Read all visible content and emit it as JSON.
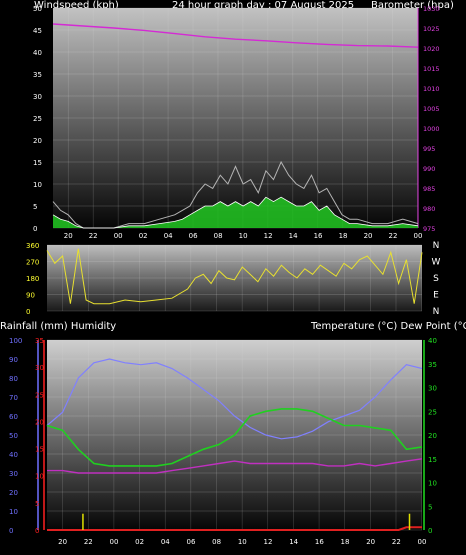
{
  "header": {
    "left": "Windspeed (kph)",
    "center": "24 hour graph day : 07 August 2025",
    "right": "Barometer (hpa)"
  },
  "mid_header": {
    "left": "Rainfall (mm)  Humidity",
    "right": "Temperature (°C) Dew Point (°C)"
  },
  "colors": {
    "wind_speed": "#b4b4b4",
    "wind_avg": "#ffffff",
    "wind_gust_fill": "#22c822",
    "barometer": "#d42ad4",
    "wind_dir": "#e8e030",
    "humidity": "#8080ff",
    "temperature": "#20d020",
    "dew_point": "#c030c0",
    "rainfall": "#e02020",
    "rain_rate": "#e0e000",
    "axis_wind": "#ffffff",
    "axis_baro": "#e040e0",
    "axis_humidity": "#7070ff",
    "axis_rain": "#ff2020",
    "axis_temp": "#20e020"
  },
  "chart_data": [
    {
      "type": "line",
      "panel": "wind_barometer",
      "x_tick_labels": [
        "20",
        "22",
        "00",
        "02",
        "04",
        "06",
        "08",
        "10",
        "12",
        "14",
        "16",
        "18",
        "20",
        "22",
        "00"
      ],
      "y_left": {
        "label": "Windspeed (kph)",
        "range": [
          0,
          50
        ],
        "ticks": [
          0,
          5,
          10,
          15,
          20,
          25,
          30,
          35,
          40,
          45,
          50
        ]
      },
      "y_right": {
        "label": "Barometer (hpa)",
        "range": [
          975,
          1030
        ],
        "ticks": [
          975,
          980,
          985,
          990,
          995,
          1000,
          1005,
          1010,
          1015,
          1020,
          1025,
          1030
        ]
      },
      "series": [
        {
          "name": "Barometer",
          "axis": "right",
          "x": [
            0,
            2,
            4,
            6,
            8,
            10,
            12,
            14,
            16,
            18,
            20,
            22,
            24
          ],
          "values": [
            1026,
            1025.5,
            1025,
            1024.4,
            1023.6,
            1022.8,
            1022.2,
            1021.8,
            1021.3,
            1020.9,
            1020.6,
            1020.5,
            1020.2
          ]
        },
        {
          "name": "Wind gust",
          "axis": "left",
          "x": [
            0,
            0.5,
            1,
            1.5,
            2,
            3,
            4,
            5,
            6,
            7,
            8,
            8.5,
            9,
            9.5,
            10,
            10.5,
            11,
            11.5,
            12,
            12.5,
            13,
            13.5,
            14,
            14.5,
            15,
            15.5,
            16,
            16.5,
            17,
            17.5,
            18,
            18.5,
            19,
            19.5,
            20,
            21,
            22,
            23,
            24
          ],
          "values": [
            6,
            4,
            3,
            1,
            0,
            0,
            0,
            1,
            1,
            2,
            3,
            4,
            5,
            8,
            10,
            9,
            12,
            10,
            14,
            10,
            11,
            8,
            13,
            11,
            15,
            12,
            10,
            9,
            12,
            8,
            9,
            6,
            3,
            2,
            2,
            1,
            1,
            2,
            1
          ]
        },
        {
          "name": "Wind average",
          "axis": "left",
          "x": [
            0,
            0.5,
            1,
            1.5,
            2,
            3,
            4,
            5,
            6,
            7,
            8,
            8.5,
            9,
            9.5,
            10,
            10.5,
            11,
            11.5,
            12,
            12.5,
            13,
            13.5,
            14,
            14.5,
            15,
            15.5,
            16,
            16.5,
            17,
            17.5,
            18,
            18.5,
            19,
            19.5,
            20,
            21,
            22,
            23,
            24
          ],
          "values": [
            3,
            2,
            1.5,
            0.5,
            0,
            0,
            0,
            0.5,
            0.5,
            1,
            1.5,
            2,
            3,
            4,
            5,
            5,
            6,
            5,
            6,
            5,
            6,
            5,
            7,
            6,
            7,
            6,
            5,
            5,
            6,
            4,
            5,
            3,
            2,
            1,
            1,
            0.5,
            0.5,
            1,
            0.5
          ]
        }
      ]
    },
    {
      "type": "line",
      "panel": "wind_direction",
      "x_tick_labels": [
        "20",
        "22",
        "00",
        "02",
        "04",
        "06",
        "08",
        "10",
        "12",
        "14",
        "16",
        "18",
        "20",
        "22",
        "00"
      ],
      "y_left": {
        "range": [
          0,
          360
        ],
        "ticks": [
          0,
          90,
          180,
          270,
          360
        ]
      },
      "y_right": {
        "ticks": [
          "N",
          "W",
          "S",
          "E",
          "N"
        ]
      },
      "series": [
        {
          "name": "Wind direction",
          "x": [
            0,
            0.5,
            1,
            1.5,
            2,
            2.5,
            3,
            4,
            5,
            6,
            7,
            8,
            9,
            9.5,
            10,
            10.5,
            11,
            11.5,
            12,
            12.5,
            13,
            13.5,
            14,
            14.5,
            15,
            15.5,
            16,
            16.5,
            17,
            17.5,
            18,
            18.5,
            19,
            19.5,
            20,
            20.5,
            21,
            21.5,
            22,
            22.5,
            23,
            23.5,
            24
          ],
          "values": [
            330,
            260,
            300,
            40,
            340,
            60,
            40,
            40,
            60,
            50,
            60,
            70,
            120,
            180,
            200,
            150,
            220,
            180,
            170,
            240,
            200,
            160,
            230,
            190,
            250,
            210,
            180,
            230,
            200,
            250,
            220,
            190,
            260,
            230,
            280,
            300,
            250,
            200,
            320,
            150,
            280,
            40,
            320
          ]
        }
      ]
    },
    {
      "type": "line",
      "panel": "temperature_humidity_rain",
      "x_tick_labels": [
        "20",
        "22",
        "00",
        "02",
        "04",
        "06",
        "08",
        "10",
        "12",
        "14",
        "16",
        "18",
        "20",
        "22",
        "00"
      ],
      "y_humidity": {
        "range": [
          0,
          100
        ],
        "ticks": [
          0,
          10,
          20,
          30,
          40,
          50,
          60,
          70,
          80,
          90,
          100
        ]
      },
      "y_rain": {
        "range": [
          0,
          35
        ],
        "ticks": [
          0,
          5,
          10,
          15,
          20,
          25,
          30,
          35
        ]
      },
      "y_temp": {
        "range": [
          0,
          40
        ],
        "ticks": [
          0,
          5,
          10,
          15,
          20,
          25,
          30,
          35,
          40
        ]
      },
      "series": [
        {
          "name": "Humidity",
          "axis": "humidity",
          "x": [
            0,
            1,
            2,
            3,
            4,
            5,
            6,
            7,
            8,
            9,
            10,
            11,
            12,
            13,
            14,
            15,
            16,
            17,
            18,
            19,
            20,
            21,
            22,
            23,
            24
          ],
          "values": [
            55,
            62,
            80,
            88,
            90,
            88,
            87,
            88,
            85,
            80,
            74,
            68,
            60,
            54,
            50,
            48,
            49,
            52,
            57,
            60,
            63,
            70,
            79,
            87,
            85
          ]
        },
        {
          "name": "Temperature",
          "axis": "temp",
          "x": [
            0,
            1,
            2,
            3,
            4,
            5,
            6,
            7,
            8,
            9,
            10,
            11,
            12,
            13,
            14,
            15,
            16,
            17,
            18,
            19,
            20,
            21,
            22,
            23,
            24
          ],
          "values": [
            22,
            21,
            17,
            14,
            13.5,
            13.5,
            13.5,
            13.5,
            14,
            15.5,
            17,
            18,
            20,
            24,
            25,
            25.5,
            25.5,
            25,
            23.5,
            22,
            22,
            21.5,
            21,
            17,
            17.5
          ]
        },
        {
          "name": "Dew point",
          "axis": "temp",
          "x": [
            0,
            1,
            2,
            3,
            4,
            5,
            6,
            7,
            8,
            9,
            10,
            11,
            12,
            13,
            14,
            15,
            16,
            17,
            18,
            19,
            20,
            21,
            22,
            23,
            24
          ],
          "values": [
            12.5,
            12.5,
            12,
            12,
            12,
            12,
            12,
            12,
            12.5,
            13,
            13.5,
            14,
            14.5,
            14,
            14,
            14,
            14,
            14,
            13.5,
            13.5,
            14,
            13.5,
            14,
            14.5,
            15
          ]
        },
        {
          "name": "Rainfall",
          "axis": "rain",
          "x": [
            0,
            22.5,
            23,
            24
          ],
          "values": [
            0,
            0,
            0.5,
            0.5
          ]
        },
        {
          "name": "Rain rate",
          "axis": "rain",
          "bars_x": [
            2.3,
            23.2
          ],
          "bars_value": [
            3,
            3
          ]
        }
      ]
    }
  ]
}
